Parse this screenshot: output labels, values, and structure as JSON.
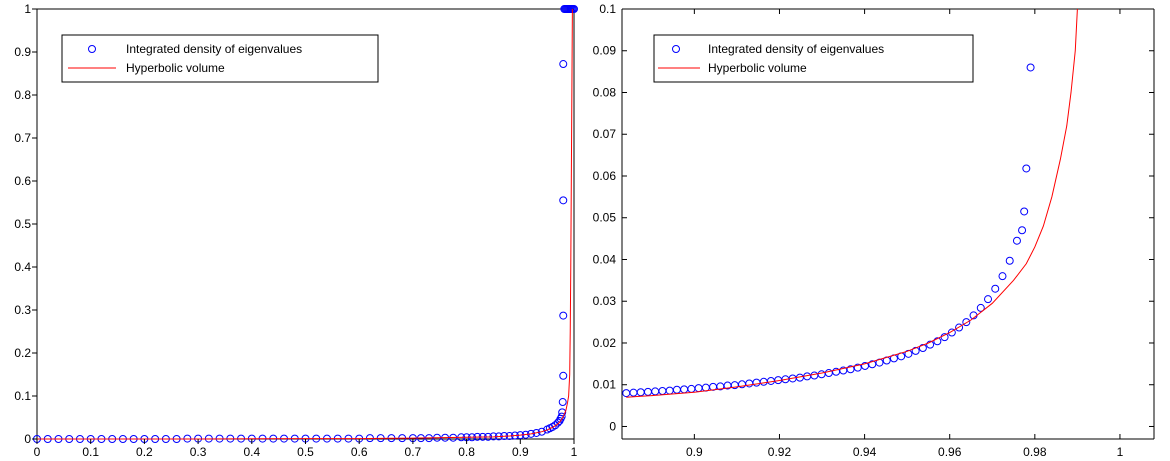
{
  "colors": {
    "marker": "#0000ff",
    "curve": "#ff0000",
    "axis": "#000000",
    "background": "#ffffff"
  },
  "chart_data": [
    {
      "type": "scatter",
      "title": "",
      "xlabel": "",
      "ylabel": "",
      "xlim": [
        0,
        1
      ],
      "ylim": [
        0,
        1
      ],
      "xticks": [
        0,
        0.1,
        0.2,
        0.3,
        0.4,
        0.5,
        0.6,
        0.7,
        0.8,
        0.9,
        1
      ],
      "xtick_labels": [
        "0",
        "0.1",
        "0.2",
        "0.3",
        "0.4",
        "0.5",
        "0.6",
        "0.7",
        "0.8",
        "0.9",
        "1"
      ],
      "yticks": [
        0,
        0.1,
        0.2,
        0.3,
        0.4,
        0.5,
        0.6,
        0.7,
        0.8,
        0.9,
        1
      ],
      "ytick_labels": [
        "0",
        "0.1",
        "0.2",
        "0.3",
        "0.4",
        "0.5",
        "0.6",
        "0.7",
        "0.8",
        "0.9",
        "1"
      ],
      "legend_position": "top-left",
      "grid": false,
      "series": [
        {
          "name": "Integrated density of eigenvalues",
          "kind": "markers",
          "marker": "circle",
          "points": [
            [
              0.0,
              0.0
            ],
            [
              0.02,
              0.0
            ],
            [
              0.04,
              0.0
            ],
            [
              0.06,
              0.0
            ],
            [
              0.08,
              0.0
            ],
            [
              0.1,
              0.0
            ],
            [
              0.12,
              0.0
            ],
            [
              0.14,
              0.0
            ],
            [
              0.16,
              0.0
            ],
            [
              0.18,
              0.0
            ],
            [
              0.2,
              0.0
            ],
            [
              0.22,
              0.0
            ],
            [
              0.24,
              0.0
            ],
            [
              0.26,
              0.0
            ],
            [
              0.28,
              0.001
            ],
            [
              0.3,
              0.001
            ],
            [
              0.32,
              0.001
            ],
            [
              0.34,
              0.001
            ],
            [
              0.36,
              0.001
            ],
            [
              0.38,
              0.001
            ],
            [
              0.4,
              0.001
            ],
            [
              0.42,
              0.001
            ],
            [
              0.44,
              0.001
            ],
            [
              0.46,
              0.001
            ],
            [
              0.48,
              0.001
            ],
            [
              0.5,
              0.001
            ],
            [
              0.52,
              0.001
            ],
            [
              0.54,
              0.001
            ],
            [
              0.56,
              0.001
            ],
            [
              0.58,
              0.001
            ],
            [
              0.6,
              0.001
            ],
            [
              0.62,
              0.002
            ],
            [
              0.64,
              0.002
            ],
            [
              0.66,
              0.002
            ],
            [
              0.68,
              0.002
            ],
            [
              0.7,
              0.002
            ],
            [
              0.715,
              0.002
            ],
            [
              0.73,
              0.002
            ],
            [
              0.745,
              0.003
            ],
            [
              0.76,
              0.003
            ],
            [
              0.775,
              0.003
            ],
            [
              0.79,
              0.004
            ],
            [
              0.8,
              0.004
            ],
            [
              0.81,
              0.004
            ],
            [
              0.82,
              0.005
            ],
            [
              0.83,
              0.005
            ],
            [
              0.84,
              0.005
            ],
            [
              0.85,
              0.006
            ],
            [
              0.86,
              0.006
            ],
            [
              0.87,
              0.007
            ],
            [
              0.88,
              0.007
            ],
            [
              0.89,
              0.008
            ],
            [
              0.9,
              0.009
            ],
            [
              0.91,
              0.01
            ],
            [
              0.92,
              0.012
            ],
            [
              0.93,
              0.014
            ],
            [
              0.94,
              0.017
            ],
            [
              0.95,
              0.022
            ],
            [
              0.955,
              0.025
            ],
            [
              0.96,
              0.028
            ],
            [
              0.965,
              0.032
            ],
            [
              0.97,
              0.038
            ],
            [
              0.973,
              0.042
            ],
            [
              0.975,
              0.047
            ],
            [
              0.977,
              0.052
            ],
            [
              0.978,
              0.062
            ],
            [
              0.979,
              0.086
            ],
            [
              0.98,
              0.147
            ],
            [
              0.98,
              0.287
            ],
            [
              0.98,
              0.555
            ],
            [
              0.98,
              0.872
            ],
            [
              0.982,
              1.0
            ],
            [
              0.984,
              1.0
            ],
            [
              0.986,
              1.0
            ],
            [
              0.988,
              1.0
            ],
            [
              0.99,
              1.0
            ],
            [
              0.992,
              1.0
            ],
            [
              0.994,
              1.0
            ],
            [
              0.996,
              1.0
            ],
            [
              0.998,
              1.0
            ],
            [
              1.0,
              1.0
            ]
          ]
        },
        {
          "name": "Hyperbolic volume",
          "kind": "line",
          "points": [
            [
              0.0,
              0.0
            ],
            [
              0.3,
              0.0
            ],
            [
              0.5,
              0.001
            ],
            [
              0.6,
              0.001
            ],
            [
              0.7,
              0.002
            ],
            [
              0.8,
              0.004
            ],
            [
              0.85,
              0.005
            ],
            [
              0.88,
              0.007
            ],
            [
              0.9,
              0.009
            ],
            [
              0.92,
              0.012
            ],
            [
              0.94,
              0.017
            ],
            [
              0.95,
              0.021
            ],
            [
              0.96,
              0.027
            ],
            [
              0.97,
              0.035
            ],
            [
              0.975,
              0.042
            ],
            [
              0.98,
              0.052
            ],
            [
              0.985,
              0.067
            ],
            [
              0.988,
              0.085
            ],
            [
              0.99,
              0.1
            ],
            [
              0.992,
              0.15
            ],
            [
              0.993,
              0.25
            ],
            [
              0.994,
              0.4
            ],
            [
              0.995,
              0.6
            ],
            [
              0.996,
              0.8
            ],
            [
              0.997,
              1.0
            ]
          ]
        }
      ]
    },
    {
      "type": "scatter",
      "title": "",
      "xlabel": "",
      "ylabel": "",
      "xlim": [
        0.883,
        1.008
      ],
      "ylim": [
        -0.003,
        0.1
      ],
      "xticks": [
        0.9,
        0.92,
        0.94,
        0.96,
        0.98,
        1
      ],
      "xtick_labels": [
        "0.9",
        "0.92",
        "0.94",
        "0.96",
        "0.98",
        "1"
      ],
      "yticks": [
        0,
        0.01,
        0.02,
        0.03,
        0.04,
        0.05,
        0.06,
        0.07,
        0.08,
        0.09,
        0.1
      ],
      "ytick_labels": [
        "0",
        "0.01",
        "0.02",
        "0.03",
        "0.04",
        "0.05",
        "0.06",
        "0.07",
        "0.08",
        "0.09",
        "0.1"
      ],
      "legend_position": "top-left",
      "grid": false,
      "series": [
        {
          "name": "Integrated density of eigenvalues",
          "kind": "markers",
          "marker": "circle",
          "points": [
            [
              0.884,
              0.008
            ],
            [
              0.8857,
              0.0081
            ],
            [
              0.8874,
              0.0082
            ],
            [
              0.8891,
              0.0083
            ],
            [
              0.8908,
              0.0084
            ],
            [
              0.8925,
              0.0085
            ],
            [
              0.8942,
              0.0086
            ],
            [
              0.8959,
              0.0088
            ],
            [
              0.8976,
              0.0089
            ],
            [
              0.8993,
              0.009
            ],
            [
              0.901,
              0.0092
            ],
            [
              0.9027,
              0.0093
            ],
            [
              0.9044,
              0.0095
            ],
            [
              0.9061,
              0.0096
            ],
            [
              0.9078,
              0.0098
            ],
            [
              0.9095,
              0.0099
            ],
            [
              0.9112,
              0.0101
            ],
            [
              0.9129,
              0.0103
            ],
            [
              0.9146,
              0.0105
            ],
            [
              0.9163,
              0.0107
            ],
            [
              0.918,
              0.0109
            ],
            [
              0.9197,
              0.0111
            ],
            [
              0.9214,
              0.0113
            ],
            [
              0.9231,
              0.0115
            ],
            [
              0.9248,
              0.0117
            ],
            [
              0.9265,
              0.012
            ],
            [
              0.9282,
              0.0122
            ],
            [
              0.9299,
              0.0125
            ],
            [
              0.9316,
              0.0128
            ],
            [
              0.9333,
              0.0131
            ],
            [
              0.935,
              0.0134
            ],
            [
              0.9367,
              0.0137
            ],
            [
              0.9384,
              0.0141
            ],
            [
              0.9401,
              0.0145
            ],
            [
              0.9418,
              0.0149
            ],
            [
              0.9435,
              0.0153
            ],
            [
              0.9452,
              0.0158
            ],
            [
              0.9469,
              0.0163
            ],
            [
              0.9486,
              0.0168
            ],
            [
              0.9503,
              0.0174
            ],
            [
              0.952,
              0.0181
            ],
            [
              0.9537,
              0.0188
            ],
            [
              0.9554,
              0.0196
            ],
            [
              0.9571,
              0.0204
            ],
            [
              0.9588,
              0.0214
            ],
            [
              0.9605,
              0.0225
            ],
            [
              0.9622,
              0.0237
            ],
            [
              0.9639,
              0.025
            ],
            [
              0.9656,
              0.0266
            ],
            [
              0.9673,
              0.0284
            ],
            [
              0.969,
              0.0305
            ],
            [
              0.9707,
              0.033
            ],
            [
              0.9724,
              0.036
            ],
            [
              0.9741,
              0.0397
            ],
            [
              0.9758,
              0.0445
            ],
            [
              0.977,
              0.047
            ],
            [
              0.9775,
              0.0515
            ],
            [
              0.978,
              0.0618
            ],
            [
              0.979,
              0.086
            ]
          ]
        },
        {
          "name": "Hyperbolic volume",
          "kind": "line",
          "points": [
            [
              0.884,
              0.007
            ],
            [
              0.89,
              0.0074
            ],
            [
              0.9,
              0.0082
            ],
            [
              0.91,
              0.0095
            ],
            [
              0.92,
              0.011
            ],
            [
              0.93,
              0.0128
            ],
            [
              0.94,
              0.015
            ],
            [
              0.945,
              0.0165
            ],
            [
              0.95,
              0.018
            ],
            [
              0.955,
              0.02
            ],
            [
              0.96,
              0.0225
            ],
            [
              0.965,
              0.0255
            ],
            [
              0.97,
              0.0295
            ],
            [
              0.975,
              0.035
            ],
            [
              0.978,
              0.039
            ],
            [
              0.98,
              0.043
            ],
            [
              0.982,
              0.048
            ],
            [
              0.984,
              0.055
            ],
            [
              0.986,
              0.064
            ],
            [
              0.9875,
              0.072
            ],
            [
              0.9885,
              0.08
            ],
            [
              0.9895,
              0.09
            ],
            [
              0.99,
              0.1
            ]
          ]
        }
      ]
    }
  ]
}
